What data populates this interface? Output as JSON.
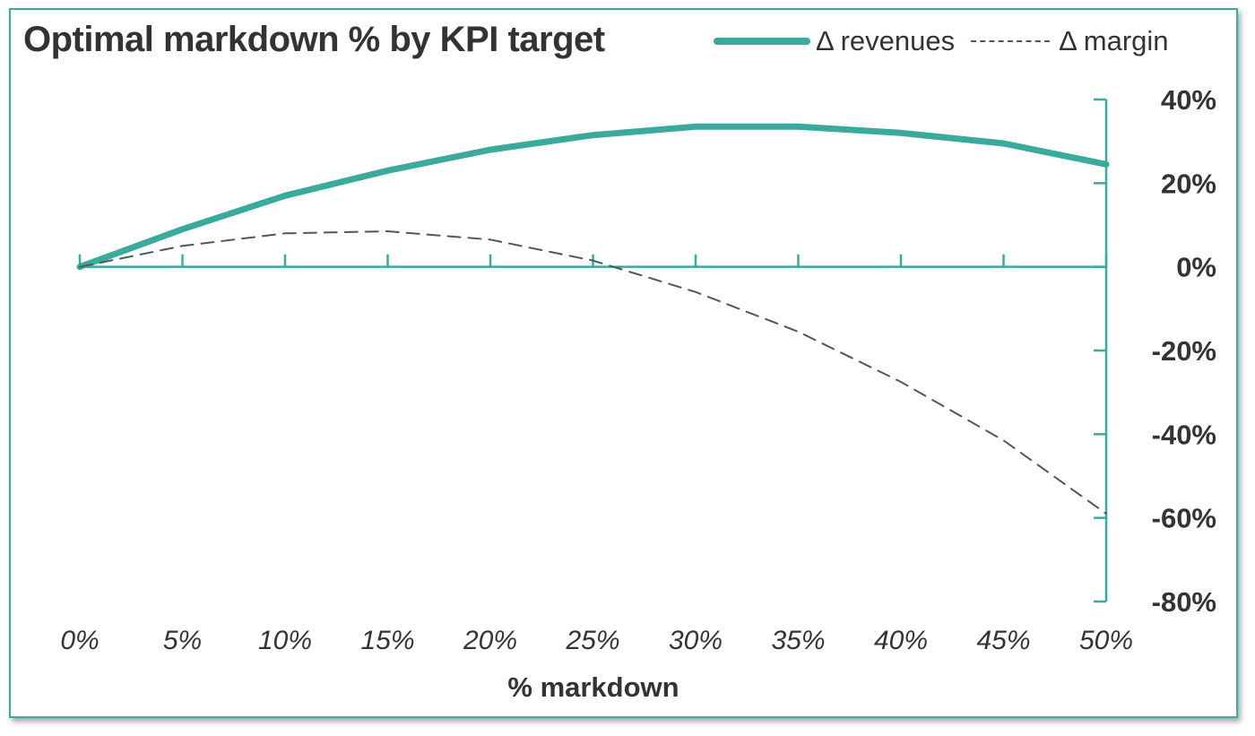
{
  "chart_data": {
    "type": "line",
    "title": "Optimal markdown % by KPI target",
    "xlabel": "% markdown",
    "ylabel": "",
    "x": [
      0,
      5,
      10,
      15,
      20,
      25,
      30,
      35,
      40,
      45,
      50
    ],
    "x_tick_labels": [
      "0%",
      "5%",
      "10%",
      "15%",
      "20%",
      "25%",
      "30%",
      "35%",
      "40%",
      "45%",
      "50%"
    ],
    "y_tick_labels": [
      "40%",
      "20%",
      "0%",
      "-20%",
      "-40%",
      "-60%",
      "-80%"
    ],
    "y_ticks": [
      40,
      20,
      0,
      -20,
      -40,
      -60,
      -80
    ],
    "ylim": [
      -80,
      40
    ],
    "xlim": [
      0,
      50
    ],
    "y_axis_position": "right",
    "grid": false,
    "legend_position": "top-right",
    "series": [
      {
        "name": "Δ revenues",
        "style": "solid",
        "color": "#3aaa9c",
        "values": [
          0,
          9,
          17,
          23,
          28,
          31.5,
          33.5,
          33.5,
          32,
          29.5,
          24.5
        ]
      },
      {
        "name": "Δ margin",
        "style": "dashed",
        "color": "#4a5a5a",
        "values": [
          0,
          5,
          8,
          8.5,
          6.5,
          1.5,
          -6,
          -15.5,
          -27.5,
          -41.5,
          -59
        ]
      }
    ]
  },
  "colors": {
    "accent": "#3aaa9c",
    "text": "#333333",
    "dash_series": "#4a5a5a"
  }
}
